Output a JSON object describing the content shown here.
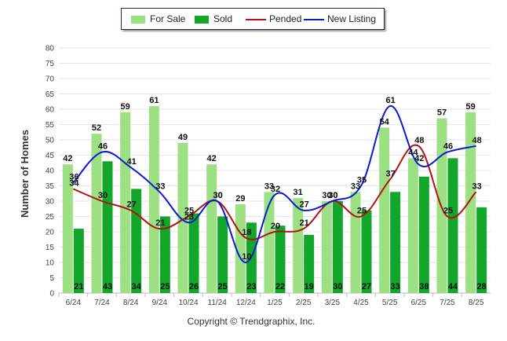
{
  "legend": {
    "for_sale": "For Sale",
    "sold": "Sold",
    "pended": "Pended",
    "new_listing": "New Listing"
  },
  "footer": {
    "copyright": "Copyright © Trendgraphix, Inc."
  },
  "colors": {
    "for_sale": "#9de083",
    "sold": "#12a62b",
    "pended": "#b51111",
    "new_listing": "#0a1ad2",
    "grid": "#e6e6e6"
  },
  "chart_data": {
    "type": "bar",
    "ylabel": "Number of Homes",
    "xlabel": "",
    "ylim": [
      0,
      80
    ],
    "yticks": [
      0,
      5,
      10,
      15,
      20,
      25,
      30,
      35,
      40,
      45,
      50,
      55,
      60,
      65,
      70,
      75,
      80
    ],
    "grid": true,
    "legend_position": "top-center",
    "categories": [
      "6/24",
      "7/24",
      "8/24",
      "9/24",
      "10/24",
      "11/24",
      "12/24",
      "1/25",
      "2/25",
      "3/25",
      "4/25",
      "5/25",
      "6/25",
      "7/25",
      "8/25"
    ],
    "series": [
      {
        "name": "For Sale",
        "kind": "bar",
        "values": [
          42,
          52,
          59,
          61,
          49,
          42,
          29,
          33,
          31,
          30,
          33,
          54,
          44,
          57,
          59
        ]
      },
      {
        "name": "Sold",
        "kind": "bar",
        "values": [
          21,
          43,
          34,
          25,
          26,
          25,
          23,
          22,
          19,
          30,
          27,
          33,
          38,
          44,
          28
        ]
      },
      {
        "name": "Pended",
        "kind": "line",
        "values": [
          34,
          30,
          27,
          21,
          25,
          30,
          18,
          20,
          21,
          30,
          25,
          37,
          48,
          25,
          33
        ]
      },
      {
        "name": "New Listing",
        "kind": "line",
        "values": [
          36,
          46,
          41,
          33,
          23,
          30,
          10,
          32,
          27,
          30,
          35,
          61,
          42,
          46,
          48
        ]
      }
    ]
  }
}
